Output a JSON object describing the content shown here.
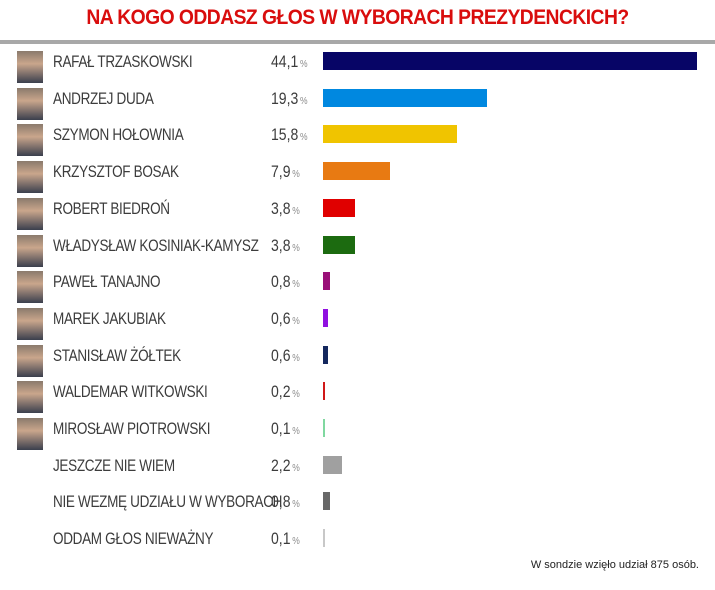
{
  "title": "NA KOGO ODDASZ GŁOS W WYBORACH PREZYDENCKICH?",
  "footer": "W sondzie wzięło udział 875 osób.",
  "percent_symbol": "%",
  "rows": [
    {
      "name": "RAFAŁ TRZASKOWSKI",
      "value": "44,1",
      "color": "#070566",
      "has_photo": true
    },
    {
      "name": "ANDRZEJ DUDA",
      "value": "19,3",
      "color": "#0088e0",
      "has_photo": true
    },
    {
      "name": "SZYMON HOŁOWNIA",
      "value": "15,8",
      "color": "#f0c400",
      "has_photo": true
    },
    {
      "name": "KRZYSZTOF BOSAK",
      "value": "7,9",
      "color": "#e87a12",
      "has_photo": true
    },
    {
      "name": "ROBERT BIEDROŃ",
      "value": "3,8",
      "color": "#e00000",
      "has_photo": true
    },
    {
      "name": "WŁADYSŁAW KOSINIAK-KAMYSZ",
      "value": "3,8",
      "color": "#1c6b10",
      "has_photo": true
    },
    {
      "name": "PAWEŁ TANAJNO",
      "value": "0,8",
      "color": "#9a0f78",
      "has_photo": true
    },
    {
      "name": "MAREK JAKUBIAK",
      "value": "0,6",
      "color": "#9010e0",
      "has_photo": true
    },
    {
      "name": "STANISŁAW ŻÓŁTEK",
      "value": "0,6",
      "color": "#14285e",
      "has_photo": true
    },
    {
      "name": "WALDEMAR WITKOWSKI",
      "value": "0,2",
      "color": "#d01818",
      "has_photo": true
    },
    {
      "name": "MIROSŁAW PIOTROWSKI",
      "value": "0,1",
      "color": "#80d8a0",
      "has_photo": true
    },
    {
      "name": "JESZCZE NIE WIEM",
      "value": "2,2",
      "color": "#a0a0a0",
      "has_photo": false
    },
    {
      "name": "NIE WEZMĘ UDZIAŁU W WYBORACH",
      "value": "0,8",
      "color": "#686868",
      "has_photo": false
    },
    {
      "name": "ODDAM GŁOS NIEWAŻNY",
      "value": "0,1",
      "color": "#c8c8c8",
      "has_photo": false
    }
  ],
  "chart_data": {
    "type": "bar",
    "orientation": "horizontal",
    "title": "NA KOGO ODDASZ GŁOS W WYBORACH PREZYDENCKICH?",
    "categories": [
      "RAFAŁ TRZASKOWSKI",
      "ANDRZEJ DUDA",
      "SZYMON HOŁOWNIA",
      "KRZYSZTOF BOSAK",
      "ROBERT BIEDROŃ",
      "WŁADYSŁAW KOSINIAK-KAMYSZ",
      "PAWEŁ TANAJNO",
      "MAREK JAKUBIAK",
      "STANISŁAW ŻÓŁTEK",
      "WALDEMAR WITKOWSKI",
      "MIROSŁAW PIOTROWSKI",
      "JESZCZE NIE WIEM",
      "NIE WEZMĘ UDZIAŁU W WYBORACH",
      "ODDAM GŁOS NIEWAŻNY"
    ],
    "values": [
      44.1,
      19.3,
      15.8,
      7.9,
      3.8,
      3.8,
      0.8,
      0.6,
      0.6,
      0.2,
      0.1,
      2.2,
      0.8,
      0.1
    ],
    "unit": "%",
    "xlabel": "",
    "ylabel": "",
    "grid": false,
    "legend": "none",
    "annotation": "W sondzie wzięło udział 875 osób."
  }
}
